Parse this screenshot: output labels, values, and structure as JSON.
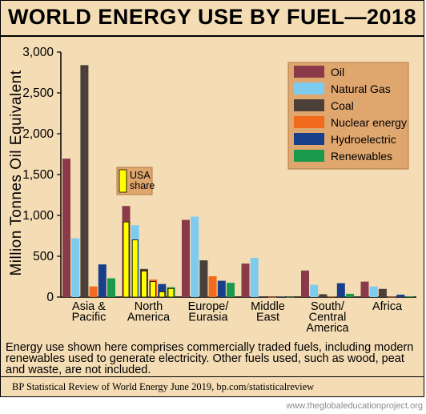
{
  "title": "WORLD ENERGY USE BY FUEL—2018",
  "note": "Energy use shown here comprises commercially traded fuels, including modern renewables used to generate electricity. Other fuels used, such as wood, peat and waste, are not included.",
  "source": "BP Statistical Review of World Energy June 2019, bp.com/statisticalreview",
  "watermark": "www.theglobaleducationproject.org",
  "chart_data": {
    "type": "bar",
    "title": "WORLD ENERGY USE BY FUEL—2018",
    "ylabel": "Million Tonnes Oil Equivalent",
    "xlabel": "",
    "ylim": [
      0,
      3000
    ],
    "yticks": [
      0,
      500,
      1000,
      1500,
      2000,
      2500,
      3000
    ],
    "ytick_labels": [
      "0",
      "500",
      "1,000",
      "1,500",
      "2,000",
      "2,500",
      "3,000"
    ],
    "grid": false,
    "legend_position": "top-right",
    "categories": [
      [
        "Asia &",
        "Pacific"
      ],
      [
        "North",
        "America"
      ],
      [
        "Europe/",
        "Eurasia"
      ],
      [
        "Middle",
        "East"
      ],
      [
        "South/",
        "Central",
        "America"
      ],
      [
        "Africa"
      ]
    ],
    "series": [
      {
        "name": "Oil",
        "color": "#8b3a4a",
        "values": [
          1695,
          1115,
          945,
          410,
          325,
          190
        ]
      },
      {
        "name": "Natural Gas",
        "color": "#7ecbf0",
        "values": [
          720,
          880,
          985,
          480,
          150,
          130
        ]
      },
      {
        "name": "Coal",
        "color": "#4a4039",
        "values": [
          2840,
          345,
          450,
          10,
          35,
          100
        ]
      },
      {
        "name": "Nuclear energy",
        "color": "#f26a1b",
        "values": [
          130,
          215,
          255,
          2,
          5,
          3
        ]
      },
      {
        "name": "Hydroelectric",
        "color": "#173f8a",
        "values": [
          400,
          160,
          200,
          5,
          170,
          30
        ]
      },
      {
        "name": "Renewables",
        "color": "#1a9a4a",
        "values": [
          230,
          120,
          175,
          2,
          40,
          10
        ]
      }
    ],
    "usa_share": {
      "label": [
        "USA",
        "share"
      ],
      "color": "#ffff00",
      "category": "North America",
      "values": [
        920,
        700,
        320,
        190,
        65,
        105
      ]
    }
  }
}
